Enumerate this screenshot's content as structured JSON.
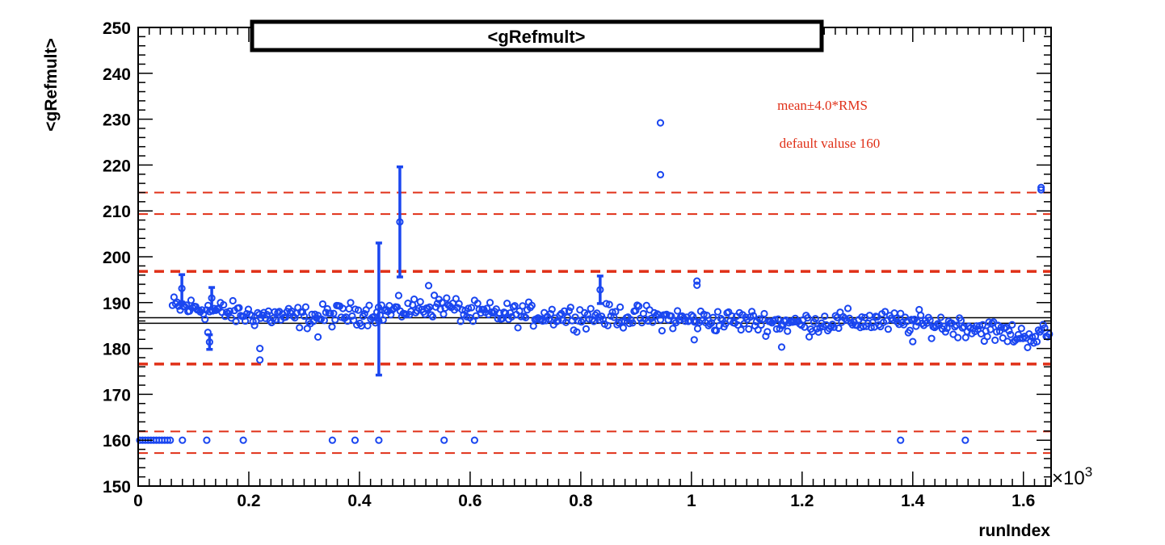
{
  "chart_data": {
    "type": "scatter",
    "title": "<gRefmult>",
    "xlabel": "runIndex",
    "ylabel": "<gRefmult>",
    "x_multiplier": "×10",
    "x_multiplier_exp": "3",
    "xlim": [
      0,
      1.65
    ],
    "ylim": [
      150,
      250
    ],
    "xticks": [
      0,
      0.2,
      0.4,
      0.6,
      0.8,
      1,
      1.2,
      1.4,
      1.6
    ],
    "xtick_labels": [
      "0",
      "0.2",
      "0.4",
      "0.6",
      "0.8",
      "1",
      "1.2",
      "1.4",
      "1.6"
    ],
    "yticks": [
      150,
      160,
      170,
      180,
      190,
      200,
      210,
      220,
      230,
      240,
      250
    ],
    "ytick_labels": [
      "150",
      "160",
      "170",
      "180",
      "190",
      "200",
      "210",
      "220",
      "230",
      "240",
      "250"
    ],
    "legend": {
      "placement": "top-right",
      "entries": [
        "mean±4.0*RMS",
        "default valuse 160"
      ]
    },
    "reference_lines": {
      "mean": [
        186.7,
        185.5
      ],
      "mean_pm_4rms": [
        196.8,
        176.6
      ],
      "outer_band": [
        214.0,
        209.3
      ],
      "default_band": [
        161.9,
        157.2
      ]
    },
    "colors": {
      "points": "#1a46f0",
      "rms_lines": "#e03018",
      "mean_lines": "#000000"
    },
    "series": [
      {
        "name": "",
        "trend": [
          [
            0.06,
            189.2
          ],
          [
            0.12,
            188.6
          ],
          [
            0.2,
            187.2
          ],
          [
            0.3,
            186.8
          ],
          [
            0.4,
            187.6
          ],
          [
            0.5,
            188.6
          ],
          [
            0.55,
            189.6
          ],
          [
            0.6,
            187.6
          ],
          [
            0.7,
            187.4
          ],
          [
            0.8,
            187.0
          ],
          [
            0.9,
            187.0
          ],
          [
            1.0,
            186.2
          ],
          [
            1.1,
            186.0
          ],
          [
            1.2,
            185.4
          ],
          [
            1.3,
            186.0
          ],
          [
            1.4,
            185.6
          ],
          [
            1.5,
            184.8
          ],
          [
            1.6,
            182.6
          ],
          [
            1.65,
            183.2
          ]
        ],
        "spread": 2.1,
        "default_points": [
          0.003,
          0.008,
          0.013,
          0.018,
          0.023,
          0.028,
          0.033,
          0.038,
          0.043,
          0.048,
          0.053,
          0.058,
          0.08,
          0.124,
          0.19,
          0.351,
          0.392,
          0.435,
          0.553,
          0.608,
          1.378,
          1.495
        ],
        "default_value": 160,
        "outliers": [
          [
            0.079,
            193.1
          ],
          [
            0.126,
            183.5
          ],
          [
            0.129,
            181.4
          ],
          [
            0.133,
            191.0
          ],
          [
            0.22,
            177.5
          ],
          [
            0.22,
            180.0
          ],
          [
            0.325,
            182.5
          ],
          [
            0.435,
            186.0
          ],
          [
            0.473,
            207.6
          ],
          [
            0.525,
            193.7
          ],
          [
            0.835,
            192.8
          ],
          [
            0.944,
            229.2
          ],
          [
            0.944,
            217.9
          ],
          [
            1.01,
            194.7
          ],
          [
            1.01,
            193.8
          ],
          [
            1.005,
            181.9
          ],
          [
            1.163,
            180.3
          ],
          [
            1.4,
            181.5
          ],
          [
            1.632,
            215.1
          ],
          [
            1.632,
            214.6
          ]
        ],
        "error_bars": [
          [
            0.079,
            193.1,
            3.0
          ],
          [
            0.129,
            181.4,
            1.6
          ],
          [
            0.133,
            191.0,
            2.3
          ],
          [
            0.435,
            188.6,
            14.4
          ],
          [
            0.473,
            207.6,
            12.0
          ],
          [
            0.835,
            192.8,
            3.0
          ]
        ]
      }
    ]
  }
}
